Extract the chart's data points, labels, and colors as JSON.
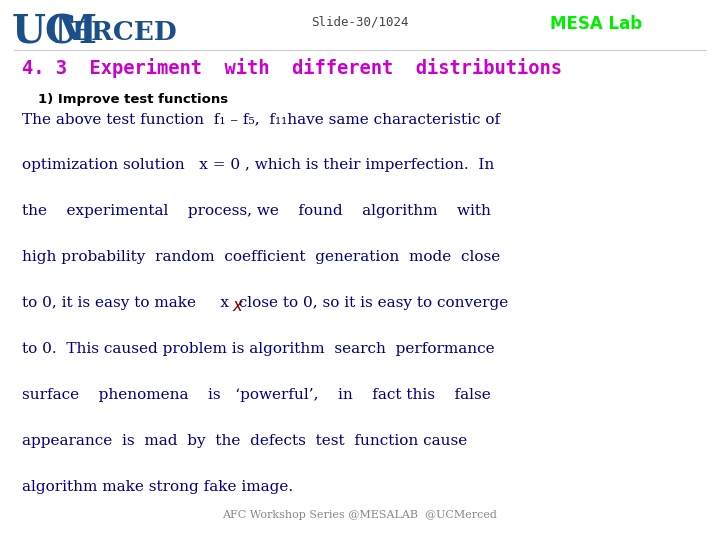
{
  "bg_color": "#ffffff",
  "header_slide_text": "Slide-30/1024",
  "header_mesa_text": "MESA Lab",
  "header_mesa_color": "#00ee00",
  "ucmerced_color": "#1a4f8a",
  "title": "4. 3  Experiment  with  different  distributions",
  "title_color": "#cc00cc",
  "subtitle": "1) Improve test functions",
  "subtitle_color": "#000000",
  "body_color": "#000080",
  "footer": "AFC Workshop Series @MESALAB  @UCMerced",
  "footer_color": "#888888",
  "line1a": "The above test function  ",
  "line1b": "f₁ – f₅,  f₁₁",
  "line1c": "have same characteristic of",
  "line2a": "optimization solution  ",
  "line2b": " x = 0 ",
  "line2c": ", which is their imperfection.  In",
  "line3": "the    experimental    process, we    found    algorithm    with",
  "line4": "high probability  random  coefficient  generation  mode  close",
  "line5a": "to 0, it is easy to make     ",
  "line5b": "x",
  "line5c": "  close to 0, so it is easy to converge",
  "line6": "to 0.  This caused problem is algorithm  search  performance",
  "line7": "surface    phenomena    is   ‘powerful’,    in    fact this    false",
  "line8": "appearance  is  mad  by  the  defects  test  function cause",
  "line9": "algorithm make strong fake image."
}
